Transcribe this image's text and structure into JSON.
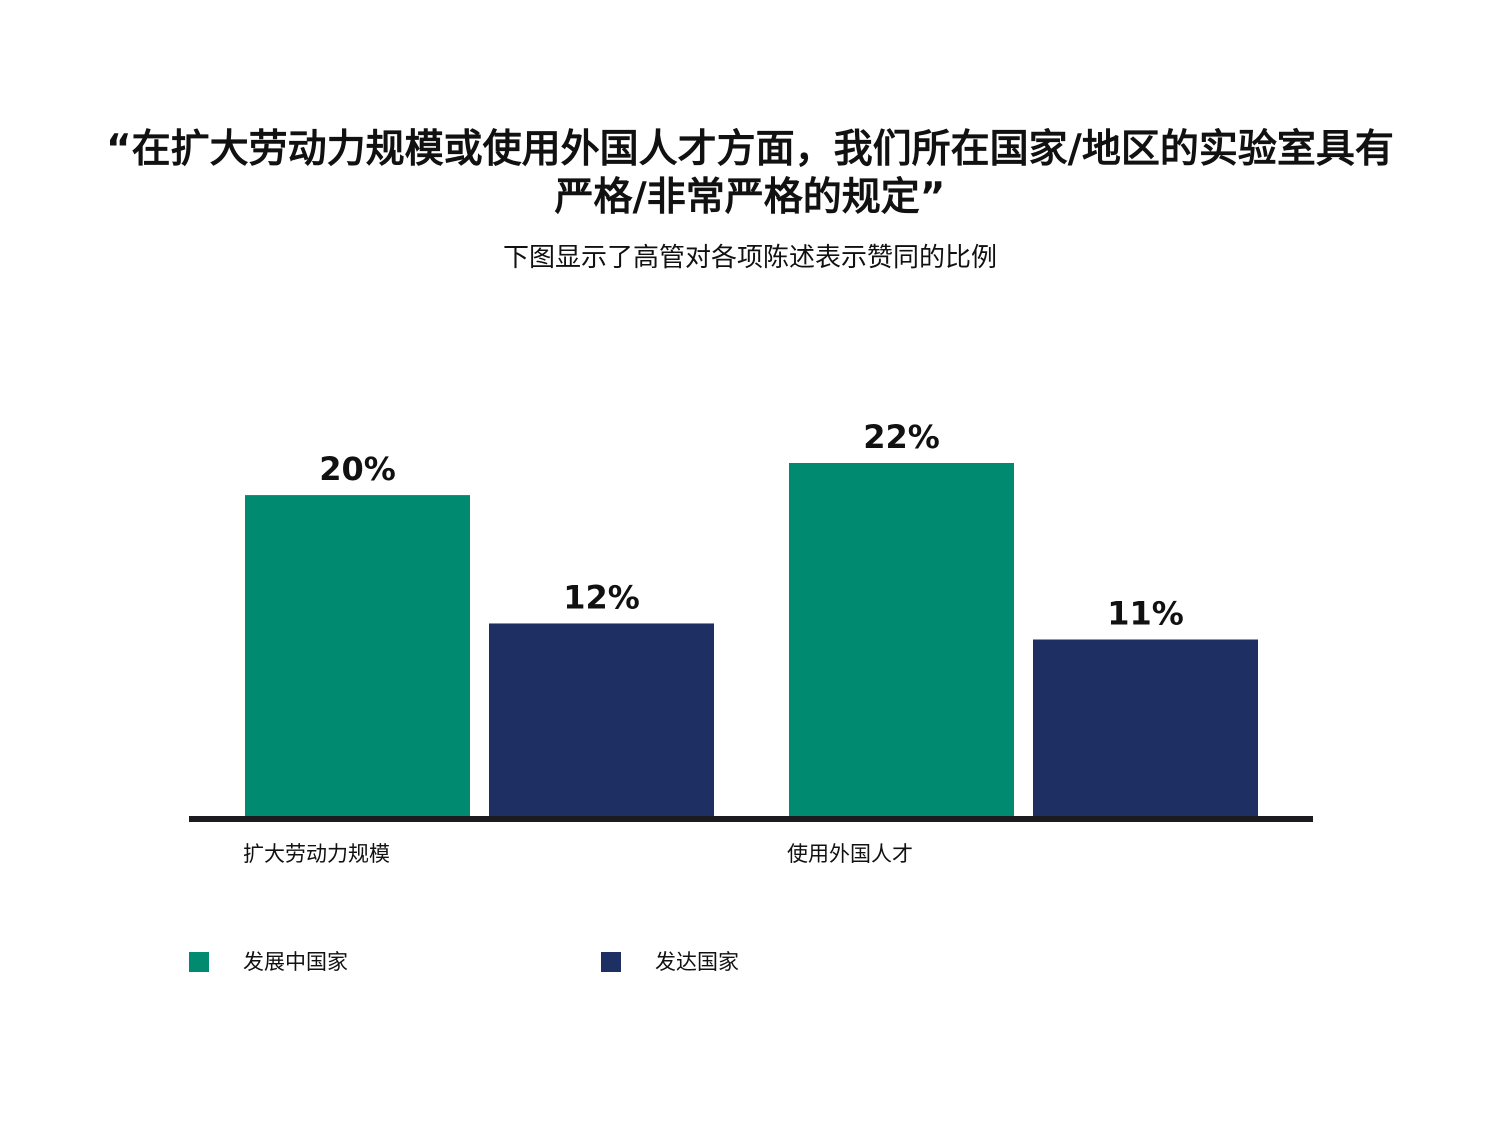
{
  "title": "“在扩大劳动力规模或使用外国人才方面，我们所在国家/地区的实验室具有严格/非常严格的规定”",
  "subtitle": "下图显示了高管对各项陈述表示赞同的比例",
  "colors": {
    "developing": "#008a70",
    "developed": "#1e2f63",
    "axis": "#1a1a1f"
  },
  "chart_data": {
    "type": "bar",
    "categories": [
      "扩大劳动力规模",
      "使用外国人才"
    ],
    "series": [
      {
        "name": "发展中国家",
        "values": [
          20,
          22
        ],
        "labels": [
          "20%",
          "22%"
        ]
      },
      {
        "name": "发达国家",
        "values": [
          12,
          11
        ],
        "labels": [
          "12%",
          "11%"
        ]
      }
    ],
    "ylim": [
      0,
      22
    ],
    "grid": false,
    "legend_position": "bottom-left"
  },
  "legend": [
    {
      "label": "发展中国家"
    },
    {
      "label": "发达国家"
    }
  ]
}
